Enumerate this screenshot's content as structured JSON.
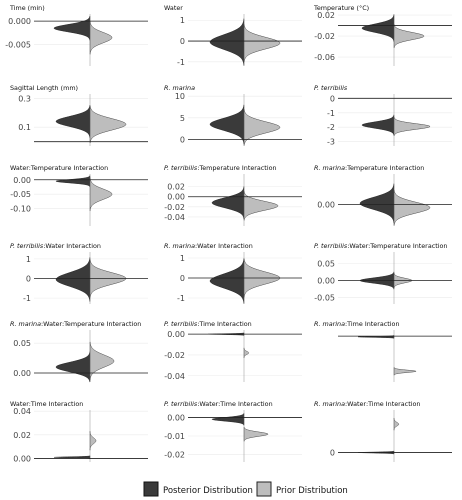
{
  "legend": {
    "posterior_label": "Posterior Distribution",
    "prior_label": "Prior Distribution",
    "colors": {
      "posterior": "#3a3a3a",
      "prior": "#bdbdbd"
    }
  },
  "chart_data": [
    {
      "type": "violin",
      "title_italic": "",
      "title_plain": "Time (min)",
      "ylim": [
        -0.0095,
        0.0015
      ],
      "yticks": [
        0.0,
        -0.005
      ],
      "ytick_labels": [
        "0.000",
        "-0.005"
      ],
      "posterior": {
        "center": -0.0015,
        "sd": 0.0008,
        "width": 0.9
      },
      "prior": {
        "center": -0.0035,
        "sd": 0.0011,
        "width": 0.55
      }
    },
    {
      "type": "violin",
      "title_italic": "",
      "title_plain": "Water",
      "ylim": [
        -1.2,
        1.3
      ],
      "yticks": [
        1,
        0,
        -1
      ],
      "ytick_labels": [
        "1",
        "0",
        "-1"
      ],
      "posterior": {
        "center": -0.05,
        "sd": 0.35,
        "width": 0.85
      },
      "prior": {
        "center": -0.1,
        "sd": 0.28,
        "width": 0.9
      }
    },
    {
      "type": "violin",
      "title_italic": "",
      "title_plain": "Temperature (°C)",
      "ylim": [
        -0.077,
        0.022
      ],
      "yticks": [
        0.02,
        -0.02,
        -0.06
      ],
      "ytick_labels": [
        "0.02",
        "-0.02",
        "-0.06"
      ],
      "posterior": {
        "center": -0.005,
        "sd": 0.008,
        "width": 0.8
      },
      "prior": {
        "center": -0.02,
        "sd": 0.007,
        "width": 0.75
      }
    },
    {
      "type": "violin",
      "title_italic": "",
      "title_plain": "Sagittal Length (mm)",
      "ylim": [
        -0.03,
        0.33
      ],
      "yticks": [
        0.3,
        0.1
      ],
      "ytick_labels": [
        "0.3",
        "0.1"
      ],
      "posterior": {
        "center": 0.14,
        "sd": 0.035,
        "width": 0.85
      },
      "prior": {
        "center": 0.12,
        "sd": 0.04,
        "width": 0.9
      }
    },
    {
      "type": "violin",
      "title_italic": "R. marina",
      "title_plain": "",
      "ylim": [
        -1.5,
        10.5
      ],
      "yticks": [
        10,
        5,
        0
      ],
      "ytick_labels": [
        "10",
        "5",
        "0"
      ],
      "posterior": {
        "center": 3.5,
        "sd": 1.4,
        "width": 0.85
      },
      "prior": {
        "center": 2.8,
        "sd": 1.3,
        "width": 0.9
      }
    },
    {
      "type": "violin",
      "title_italic": "P. terribilis",
      "title_plain": "",
      "ylim": [
        -3.3,
        0.3
      ],
      "yticks": [
        0,
        -1,
        -2,
        -3
      ],
      "ytick_labels": [
        "0",
        "-1",
        "-2",
        "-3"
      ],
      "posterior": {
        "center": -1.85,
        "sd": 0.22,
        "width": 0.8
      },
      "prior": {
        "center": -1.95,
        "sd": 0.2,
        "width": 0.9
      }
    },
    {
      "type": "violin",
      "title_italic": "",
      "title_plain": "Water:Temperature Interaction",
      "ylim": [
        -0.16,
        0.02
      ],
      "yticks": [
        0.0,
        -0.05,
        -0.1
      ],
      "ytick_labels": [
        "0.00",
        "-0.05",
        "-0.10"
      ],
      "posterior": {
        "center": -0.005,
        "sd": 0.006,
        "width": 0.85
      },
      "prior": {
        "center": -0.05,
        "sd": 0.018,
        "width": 0.55
      }
    },
    {
      "type": "violin",
      "title_italic": "P. terribilis",
      "title_plain": ":Temperature Interaction",
      "ylim": [
        -0.058,
        0.045
      ],
      "yticks": [
        0.02,
        0.0,
        -0.02,
        -0.04
      ],
      "ytick_labels": [
        "0.02",
        "0.00",
        "-0.02",
        "-0.04"
      ],
      "posterior": {
        "center": -0.012,
        "sd": 0.01,
        "width": 0.8
      },
      "prior": {
        "center": -0.018,
        "sd": 0.009,
        "width": 0.85
      }
    },
    {
      "type": "violin",
      "title_italic": "R. marina",
      "title_plain": ":Temperature Interaction",
      "ylim": [
        -0.035,
        0.05
      ],
      "yticks": [
        0.0
      ],
      "ytick_labels": [
        "0.00"
      ],
      "posterior": {
        "center": 0.002,
        "sd": 0.01,
        "width": 0.85
      },
      "prior": {
        "center": -0.005,
        "sd": 0.009,
        "width": 0.9
      }
    },
    {
      "type": "violin",
      "title_italic": "P. terribilis",
      "title_plain": ":Water Interaction",
      "ylim": [
        -1.3,
        1.35
      ],
      "yticks": [
        1,
        0,
        -1
      ],
      "ytick_labels": [
        "1",
        "0",
        "-1"
      ],
      "posterior": {
        "center": -0.05,
        "sd": 0.35,
        "width": 0.85
      },
      "prior": {
        "center": 0.0,
        "sd": 0.3,
        "width": 0.9
      }
    },
    {
      "type": "violin",
      "title_italic": "R. marina",
      "title_plain": ":Water Interaction",
      "ylim": [
        -1.3,
        1.3
      ],
      "yticks": [
        1,
        0,
        -1
      ],
      "ytick_labels": [
        "1",
        "0",
        "-1"
      ],
      "posterior": {
        "center": -0.15,
        "sd": 0.35,
        "width": 0.85
      },
      "prior": {
        "center": 0.0,
        "sd": 0.3,
        "width": 0.9
      }
    },
    {
      "type": "violin",
      "title_italic": "P. terribilis",
      "title_plain": ":Water:Temperature Interaction",
      "ylim": [
        -0.07,
        0.085
      ],
      "yticks": [
        0.05,
        0.0,
        -0.05
      ],
      "ytick_labels": [
        "0.05",
        "0.00",
        "-0.05"
      ],
      "posterior": {
        "center": 0.0,
        "sd": 0.008,
        "width": 0.85
      },
      "prior": {
        "center": 0.0,
        "sd": 0.007,
        "width": 0.45
      }
    },
    {
      "type": "violin",
      "title_italic": "R. marina",
      "title_plain": ":Water:Temperature Interaction",
      "ylim": [
        -0.015,
        0.072
      ],
      "yticks": [
        0.05,
        0.0
      ],
      "ytick_labels": [
        "0.05",
        "0.00"
      ],
      "posterior": {
        "center": 0.01,
        "sd": 0.008,
        "width": 0.85
      },
      "prior": {
        "center": 0.02,
        "sd": 0.01,
        "width": 0.6
      }
    },
    {
      "type": "violin",
      "title_italic": "P. terribilis",
      "title_plain": ":Time Interaction",
      "ylim": [
        -0.046,
        0.004
      ],
      "yticks": [
        0.0,
        -0.02,
        -0.04
      ],
      "ytick_labels": [
        "0.00",
        "-0.02",
        "-0.04"
      ],
      "posterior": {
        "center": 0.0,
        "sd": 0.0004,
        "width": 0.9
      },
      "prior": {
        "center": -0.018,
        "sd": 0.0015,
        "width": 0.12
      }
    },
    {
      "type": "violin",
      "title_italic": "R. marina",
      "title_plain": ":Time Interaction",
      "ylim": [
        -0.03,
        0.004
      ],
      "yticks": [],
      "ytick_labels": [],
      "posterior": {
        "center": -0.0005,
        "sd": 0.0003,
        "width": 0.9
      },
      "prior": {
        "center": -0.023,
        "sd": 0.0008,
        "width": 0.55
      }
    },
    {
      "type": "violin",
      "title_italic": "",
      "title_plain": "Water:Time Interaction",
      "ylim": [
        -0.003,
        0.041
      ],
      "yticks": [
        0.04,
        0.02,
        0.0
      ],
      "ytick_labels": [
        "0.04",
        "0.02",
        "0.00"
      ],
      "posterior": {
        "center": 0.001,
        "sd": 0.0004,
        "width": 0.9
      },
      "prior": {
        "center": 0.015,
        "sd": 0.0025,
        "width": 0.15
      }
    },
    {
      "type": "violin",
      "title_italic": "P. terribilis",
      "title_plain": ":Water:Time Interaction",
      "ylim": [
        -0.024,
        0.004
      ],
      "yticks": [
        0.0,
        -0.01,
        -0.02
      ],
      "ytick_labels": [
        "0.00",
        "-0.01",
        "-0.02"
      ],
      "posterior": {
        "center": -0.001,
        "sd": 0.001,
        "width": 0.8
      },
      "prior": {
        "center": -0.009,
        "sd": 0.0012,
        "width": 0.6
      }
    },
    {
      "type": "violin",
      "title_italic": "R. marina",
      "title_plain": ":Water:Time Interaction",
      "ylim": [
        -0.004,
        0.018
      ],
      "yticks": [
        0.0
      ],
      "ytick_labels": [
        "0"
      ],
      "posterior": {
        "center": 0.0,
        "sd": 0.0002,
        "width": 0.9
      },
      "prior": {
        "center": 0.012,
        "sd": 0.0008,
        "width": 0.12
      }
    }
  ]
}
